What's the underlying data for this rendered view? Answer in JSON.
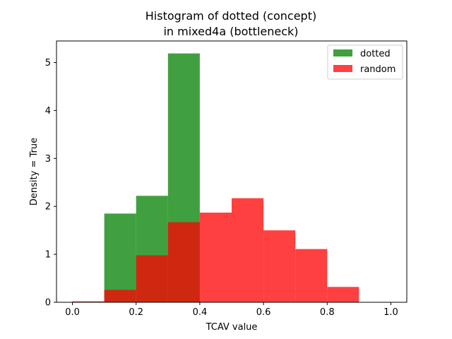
{
  "chart_data": {
    "type": "bar",
    "title": [
      "Histogram of dotted (concept)",
      "in mixed4a (bottleneck)"
    ],
    "xlabel": "TCAV value",
    "ylabel": "Density = True",
    "xlim": [
      -0.05,
      1.05
    ],
    "ylim": [
      0,
      5.45
    ],
    "x_ticks": [
      0.0,
      0.2,
      0.4,
      0.6,
      0.8,
      1.0
    ],
    "x_tick_labels": [
      "0.0",
      "0.2",
      "0.4",
      "0.6",
      "0.8",
      "1.0"
    ],
    "y_ticks": [
      0,
      1,
      2,
      3,
      4,
      5
    ],
    "y_tick_labels": [
      "0",
      "1",
      "2",
      "3",
      "4",
      "5"
    ],
    "bin_edges": [
      0.0,
      0.1,
      0.2,
      0.3,
      0.4,
      0.5,
      0.6,
      0.7,
      0.8,
      0.9,
      1.0
    ],
    "grid": false,
    "legend_position": "top-right",
    "series": [
      {
        "name": "dotted",
        "color": "#008000",
        "alpha": 0.75,
        "values": [
          0,
          1.85,
          2.22,
          5.19,
          0,
          0,
          0,
          0,
          0,
          0
        ]
      },
      {
        "name": "random",
        "color": "#ff0000",
        "alpha": 0.75,
        "values": [
          0.02,
          0.26,
          0.98,
          1.67,
          1.87,
          2.17,
          1.5,
          1.11,
          0.32,
          0
        ]
      }
    ]
  }
}
